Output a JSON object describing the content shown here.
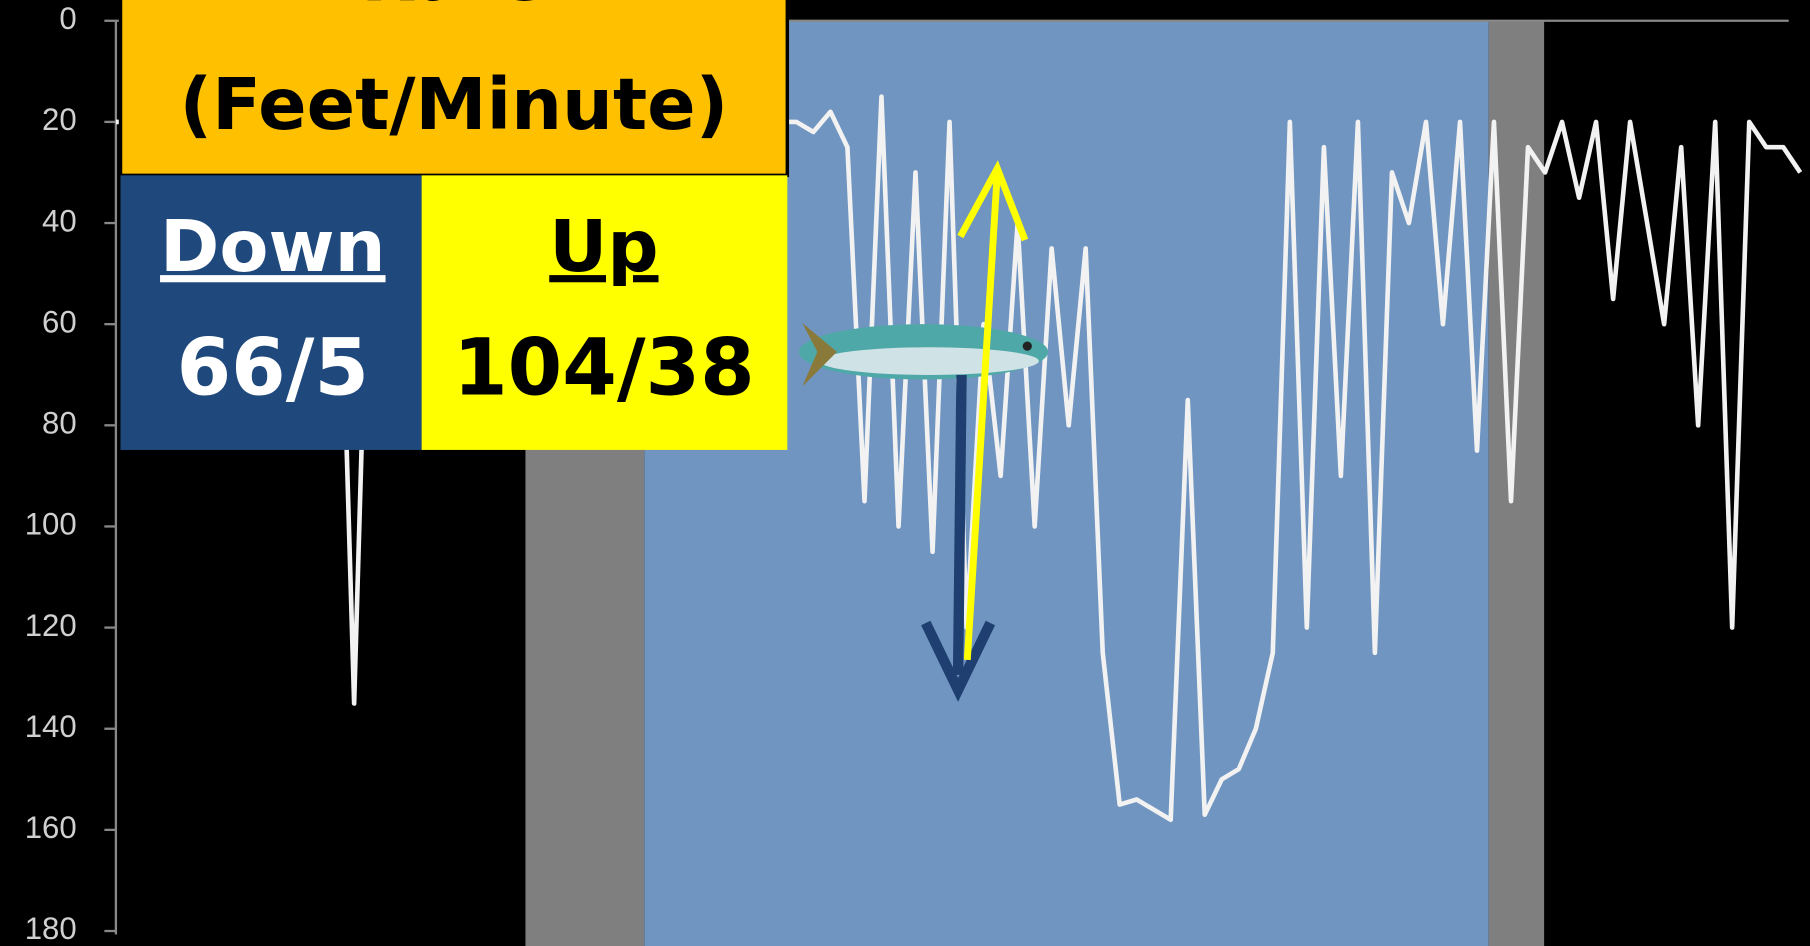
{
  "chart_data": {
    "type": "line",
    "title": "Rate",
    "subtitle": "(Feet/Minute)",
    "annotations": [
      {
        "label": "Down",
        "text": "66/5"
      },
      {
        "label": "Up",
        "text": "104/38"
      }
    ],
    "values": [
      20,
      20,
      20,
      20,
      20,
      20,
      20,
      20,
      20,
      20,
      20,
      20,
      20,
      20,
      135,
      20,
      20,
      20,
      20,
      20,
      20,
      20,
      20,
      20,
      20,
      20,
      20,
      20,
      20,
      20,
      20,
      20,
      20,
      20,
      20,
      20,
      20,
      20,
      20,
      20,
      20,
      22,
      18,
      25,
      95,
      15,
      100,
      30,
      105,
      20,
      120,
      60,
      90,
      40,
      100,
      45,
      80,
      45,
      125,
      155,
      154,
      156,
      158,
      75,
      157,
      150,
      148,
      140,
      125,
      20,
      120,
      25,
      90,
      20,
      125,
      30,
      40,
      20,
      60,
      20,
      85,
      20,
      95,
      25,
      30,
      20,
      35,
      20,
      55,
      20,
      40,
      60,
      25,
      80,
      20,
      120,
      20,
      25,
      25,
      30
    ],
    "color": "#f2f2f2",
    "ylim": [
      0,
      180
    ],
    "yticks": [
      0,
      20,
      40,
      60,
      80,
      100,
      120,
      140,
      160,
      180
    ],
    "y_inverted": true
  }
}
